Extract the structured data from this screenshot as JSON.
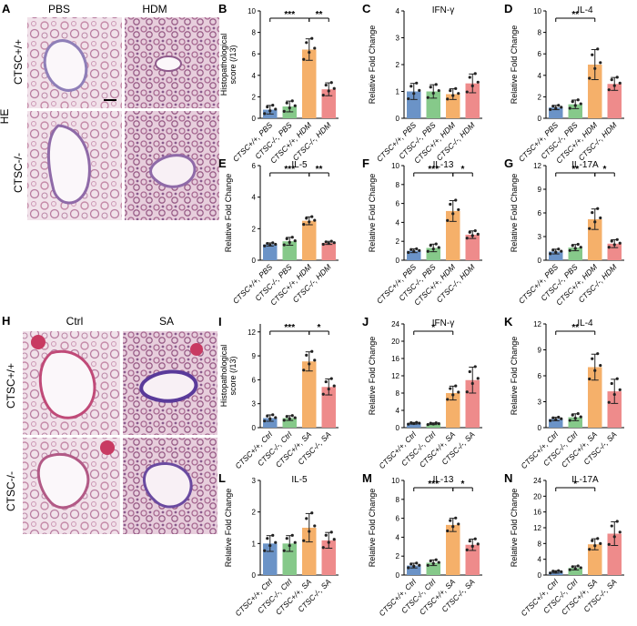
{
  "figure": {
    "colors": {
      "group1": "#6b93c7",
      "group2": "#86c98a",
      "group3": "#f5b06a",
      "group4": "#ee8b8b"
    },
    "histology_top": {
      "letter": "A",
      "columns": [
        "PBS",
        "HDM"
      ],
      "rows": [
        "CTSC+/+",
        "CTSC-/-"
      ],
      "stain": "HE"
    },
    "histology_bottom": {
      "letter": "H",
      "columns": [
        "Ctrl",
        "SA"
      ],
      "rows": [
        "CTSC+/+",
        "CTSC-/-"
      ]
    }
  },
  "chart_data": [
    {
      "id": "B",
      "letter": "B",
      "type": "bar",
      "title": "",
      "ylabel": "Histopathological\nscore (/13)",
      "categories": [
        "CTSC+/+, PBS",
        "CTSC-/-, PBS",
        "CTSC+/+, HDM",
        "CTSC-/-, HDM"
      ],
      "values": [
        0.8,
        1.1,
        6.4,
        2.7
      ],
      "errors": [
        0.4,
        0.5,
        1.0,
        0.6
      ],
      "ylim": [
        0,
        10
      ],
      "yticks": [
        0,
        2,
        4,
        6,
        8,
        10
      ],
      "significance": [
        {
          "from": 0,
          "to": 2,
          "label": "***"
        },
        {
          "from": 2,
          "to": 3,
          "label": "**"
        }
      ]
    },
    {
      "id": "C",
      "letter": "C",
      "type": "bar",
      "title": "IFN-γ",
      "ylabel": "Relative Fold Change",
      "categories": [
        "CTSC+/+, PBS",
        "CTSC-/-, PBS",
        "CTSC+/+, HDM",
        "CTSC-/-, HDM"
      ],
      "values": [
        1.0,
        1.0,
        0.9,
        1.3
      ],
      "errors": [
        0.3,
        0.25,
        0.2,
        0.35
      ],
      "ylim": [
        0,
        4
      ],
      "yticks": [
        0,
        1,
        2,
        3,
        4
      ],
      "significance": []
    },
    {
      "id": "D",
      "letter": "D",
      "type": "bar",
      "title": "IL-4",
      "ylabel": "Relative Fold Change",
      "categories": [
        "CTSC+/+, PBS",
        "CTSC-/-, PBS",
        "CTSC+/+, HDM",
        "CTSC-/-, HDM"
      ],
      "values": [
        1.0,
        1.3,
        5.0,
        3.2
      ],
      "errors": [
        0.2,
        0.4,
        1.4,
        0.6
      ],
      "ylim": [
        0,
        10
      ],
      "yticks": [
        0,
        2,
        4,
        6,
        8,
        10
      ],
      "significance": [
        {
          "from": 0,
          "to": 2,
          "label": "**"
        }
      ]
    },
    {
      "id": "E",
      "letter": "E",
      "type": "bar",
      "title": "IL-5",
      "ylabel": "Relative Fold Change",
      "categories": [
        "CTSC+/+, PBS",
        "CTSC-/-, PBS",
        "CTSC+/+, HDM",
        "CTSC-/-, HDM"
      ],
      "values": [
        1.0,
        1.2,
        2.5,
        1.1
      ],
      "errors": [
        0.1,
        0.25,
        0.25,
        0.1
      ],
      "ylim": [
        0,
        6
      ],
      "yticks": [
        0,
        2,
        4,
        6
      ],
      "significance": [
        {
          "from": 0,
          "to": 2,
          "label": "***"
        },
        {
          "from": 2,
          "to": 3,
          "label": "**"
        }
      ]
    },
    {
      "id": "F",
      "letter": "F",
      "type": "bar",
      "title": "IL-13",
      "ylabel": "Relative Fold Change",
      "categories": [
        "CTSC+/+, PBS",
        "CTSC-/-, PBS",
        "CTSC+/+, HDM",
        "CTSC-/-, HDM"
      ],
      "values": [
        1.0,
        1.3,
        5.2,
        2.7
      ],
      "errors": [
        0.2,
        0.4,
        1.1,
        0.4
      ],
      "ylim": [
        0,
        10
      ],
      "yticks": [
        0,
        2,
        4,
        6,
        8,
        10
      ],
      "significance": [
        {
          "from": 0,
          "to": 2,
          "label": "***"
        },
        {
          "from": 2,
          "to": 3,
          "label": "*"
        }
      ]
    },
    {
      "id": "G",
      "letter": "G",
      "type": "bar",
      "title": "IL-17A",
      "ylabel": "Relative Fold Change",
      "categories": [
        "CTSC+/+, PBS",
        "CTSC-/-, PBS",
        "CTSC+/+, HDM",
        "CTSC-/-, HDM"
      ],
      "values": [
        1.1,
        1.6,
        5.2,
        2.1
      ],
      "errors": [
        0.3,
        0.4,
        1.3,
        0.5
      ],
      "ylim": [
        0,
        12
      ],
      "yticks": [
        0,
        3,
        6,
        9,
        12
      ],
      "significance": [
        {
          "from": 0,
          "to": 2,
          "label": "**"
        },
        {
          "from": 2,
          "to": 3,
          "label": "*"
        }
      ]
    },
    {
      "id": "I",
      "letter": "I",
      "type": "bar",
      "title": "",
      "ylabel": "Histopathological\nscore (/13)",
      "categories": [
        "CTSC+/+, Ctrl",
        "CTSC-/-, Ctrl",
        "CTSC+/+, SA",
        "CTSC-/-, SA"
      ],
      "values": [
        1.2,
        1.2,
        8.3,
        5.1
      ],
      "errors": [
        0.4,
        0.3,
        1.2,
        1.0
      ],
      "ylim": [
        0,
        13
      ],
      "yticks": [
        0,
        3,
        6,
        9,
        12
      ],
      "significance": [
        {
          "from": 0,
          "to": 2,
          "label": "***"
        },
        {
          "from": 2,
          "to": 3,
          "label": "*"
        }
      ]
    },
    {
      "id": "J",
      "letter": "J",
      "type": "bar",
      "title": "IFN-γ",
      "ylabel": "Relative Fold Change",
      "categories": [
        "CTSC+/+, Ctrl",
        "CTSC-/-, Ctrl",
        "CTSC+/+, SA",
        "CTSC-/-, SA"
      ],
      "values": [
        1.0,
        0.9,
        8.0,
        11.0
      ],
      "errors": [
        0.2,
        0.2,
        1.6,
        3.0
      ],
      "ylim": [
        0,
        24
      ],
      "yticks": [
        0,
        4,
        8,
        12,
        16,
        20,
        24
      ],
      "significance": [
        {
          "from": 0,
          "to": 2,
          "label": "*"
        }
      ]
    },
    {
      "id": "K",
      "letter": "K",
      "type": "bar",
      "title": "IL-4",
      "ylabel": "Relative Fold Change",
      "categories": [
        "CTSC+/+, Ctrl",
        "CTSC-/-, Ctrl",
        "CTSC+/+, SA",
        "CTSC-/-, SA"
      ],
      "values": [
        1.0,
        1.2,
        7.0,
        4.2
      ],
      "errors": [
        0.2,
        0.4,
        1.5,
        1.4
      ],
      "ylim": [
        0,
        12
      ],
      "yticks": [
        0,
        3,
        6,
        9,
        12
      ],
      "significance": [
        {
          "from": 0,
          "to": 2,
          "label": "**"
        }
      ]
    },
    {
      "id": "L",
      "letter": "L",
      "type": "bar",
      "title": "IL-5",
      "ylabel": "Relative Fold Change",
      "categories": [
        "CTSC+/+, Ctrl",
        "CTSC-/-, Ctrl",
        "CTSC+/+, SA",
        "CTSC-/-, SA"
      ],
      "values": [
        1.0,
        1.0,
        1.5,
        1.1
      ],
      "errors": [
        0.25,
        0.25,
        0.45,
        0.25
      ],
      "ylim": [
        0,
        3
      ],
      "yticks": [
        0,
        1,
        2,
        3
      ],
      "significance": []
    },
    {
      "id": "M",
      "letter": "M",
      "type": "bar",
      "title": "IL-13",
      "ylabel": "Relative Fold Change",
      "categories": [
        "CTSC+/+, Ctrl",
        "CTSC-/-, Ctrl",
        "CTSC+/+, SA",
        "CTSC-/-, SA"
      ],
      "values": [
        1.0,
        1.3,
        5.3,
        3.2
      ],
      "errors": [
        0.25,
        0.3,
        0.7,
        0.6
      ],
      "ylim": [
        0,
        10
      ],
      "yticks": [
        0,
        2,
        4,
        6,
        8,
        10
      ],
      "significance": [
        {
          "from": 0,
          "to": 2,
          "label": "***"
        },
        {
          "from": 2,
          "to": 3,
          "label": "*"
        }
      ]
    },
    {
      "id": "N",
      "letter": "N",
      "type": "bar",
      "title": "IL-17A",
      "ylabel": "Relative Fold Change",
      "categories": [
        "CTSC+/+, Ctrl",
        "CTSC-/-, Ctrl",
        "CTSC+/+, SA",
        "CTSC-/-, SA"
      ],
      "values": [
        0.8,
        1.8,
        7.8,
        10.5
      ],
      "errors": [
        0.3,
        0.5,
        1.4,
        3.0
      ],
      "ylim": [
        0,
        24
      ],
      "yticks": [
        0,
        4,
        8,
        12,
        16,
        20,
        24
      ],
      "significance": [
        {
          "from": 0,
          "to": 2,
          "label": "*"
        }
      ]
    }
  ]
}
